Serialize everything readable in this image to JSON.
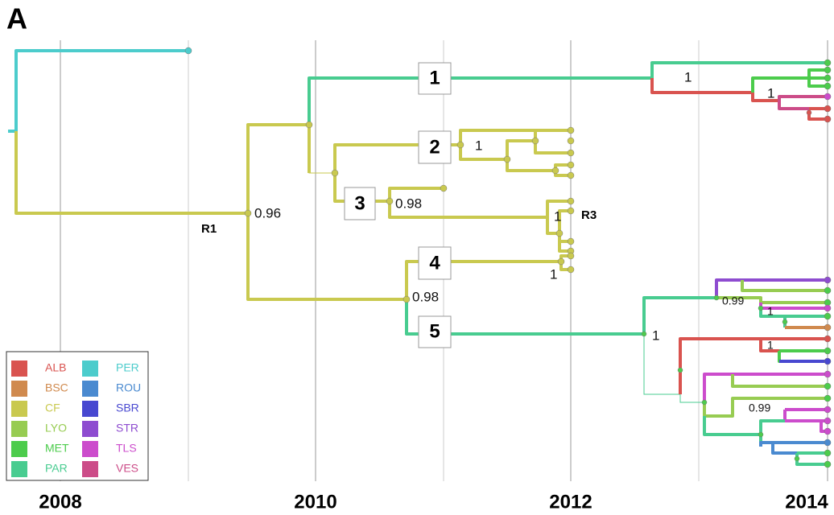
{
  "panel_label": "A",
  "axis": {
    "labels": [
      "2008",
      "2010",
      "2012",
      "2014"
    ]
  },
  "clades": [
    "1",
    "2",
    "3",
    "4",
    "5"
  ],
  "supports": [
    "1",
    "1",
    "0.96",
    "0.98",
    "1",
    "1",
    "1",
    "0.98",
    "0.99",
    "1",
    "1",
    "1",
    "0.99"
  ],
  "nodes": [
    "R1",
    "R3"
  ],
  "legend": [
    {
      "name": "ALB",
      "color": "#d9534f"
    },
    {
      "name": "BSC",
      "color": "#d08a4e"
    },
    {
      "name": "CF",
      "color": "#c9c94f"
    },
    {
      "name": "LYO",
      "color": "#97cc52"
    },
    {
      "name": "MET",
      "color": "#4ccc4c"
    },
    {
      "name": "PAR",
      "color": "#48cc90"
    },
    {
      "name": "PER",
      "color": "#4ccccc"
    },
    {
      "name": "ROU",
      "color": "#4a8ad0"
    },
    {
      "name": "SBR",
      "color": "#4848d0"
    },
    {
      "name": "STR",
      "color": "#8e4cd0"
    },
    {
      "name": "TLS",
      "color": "#cc4ccc"
    },
    {
      "name": "VES",
      "color": "#cc4c88"
    }
  ]
}
